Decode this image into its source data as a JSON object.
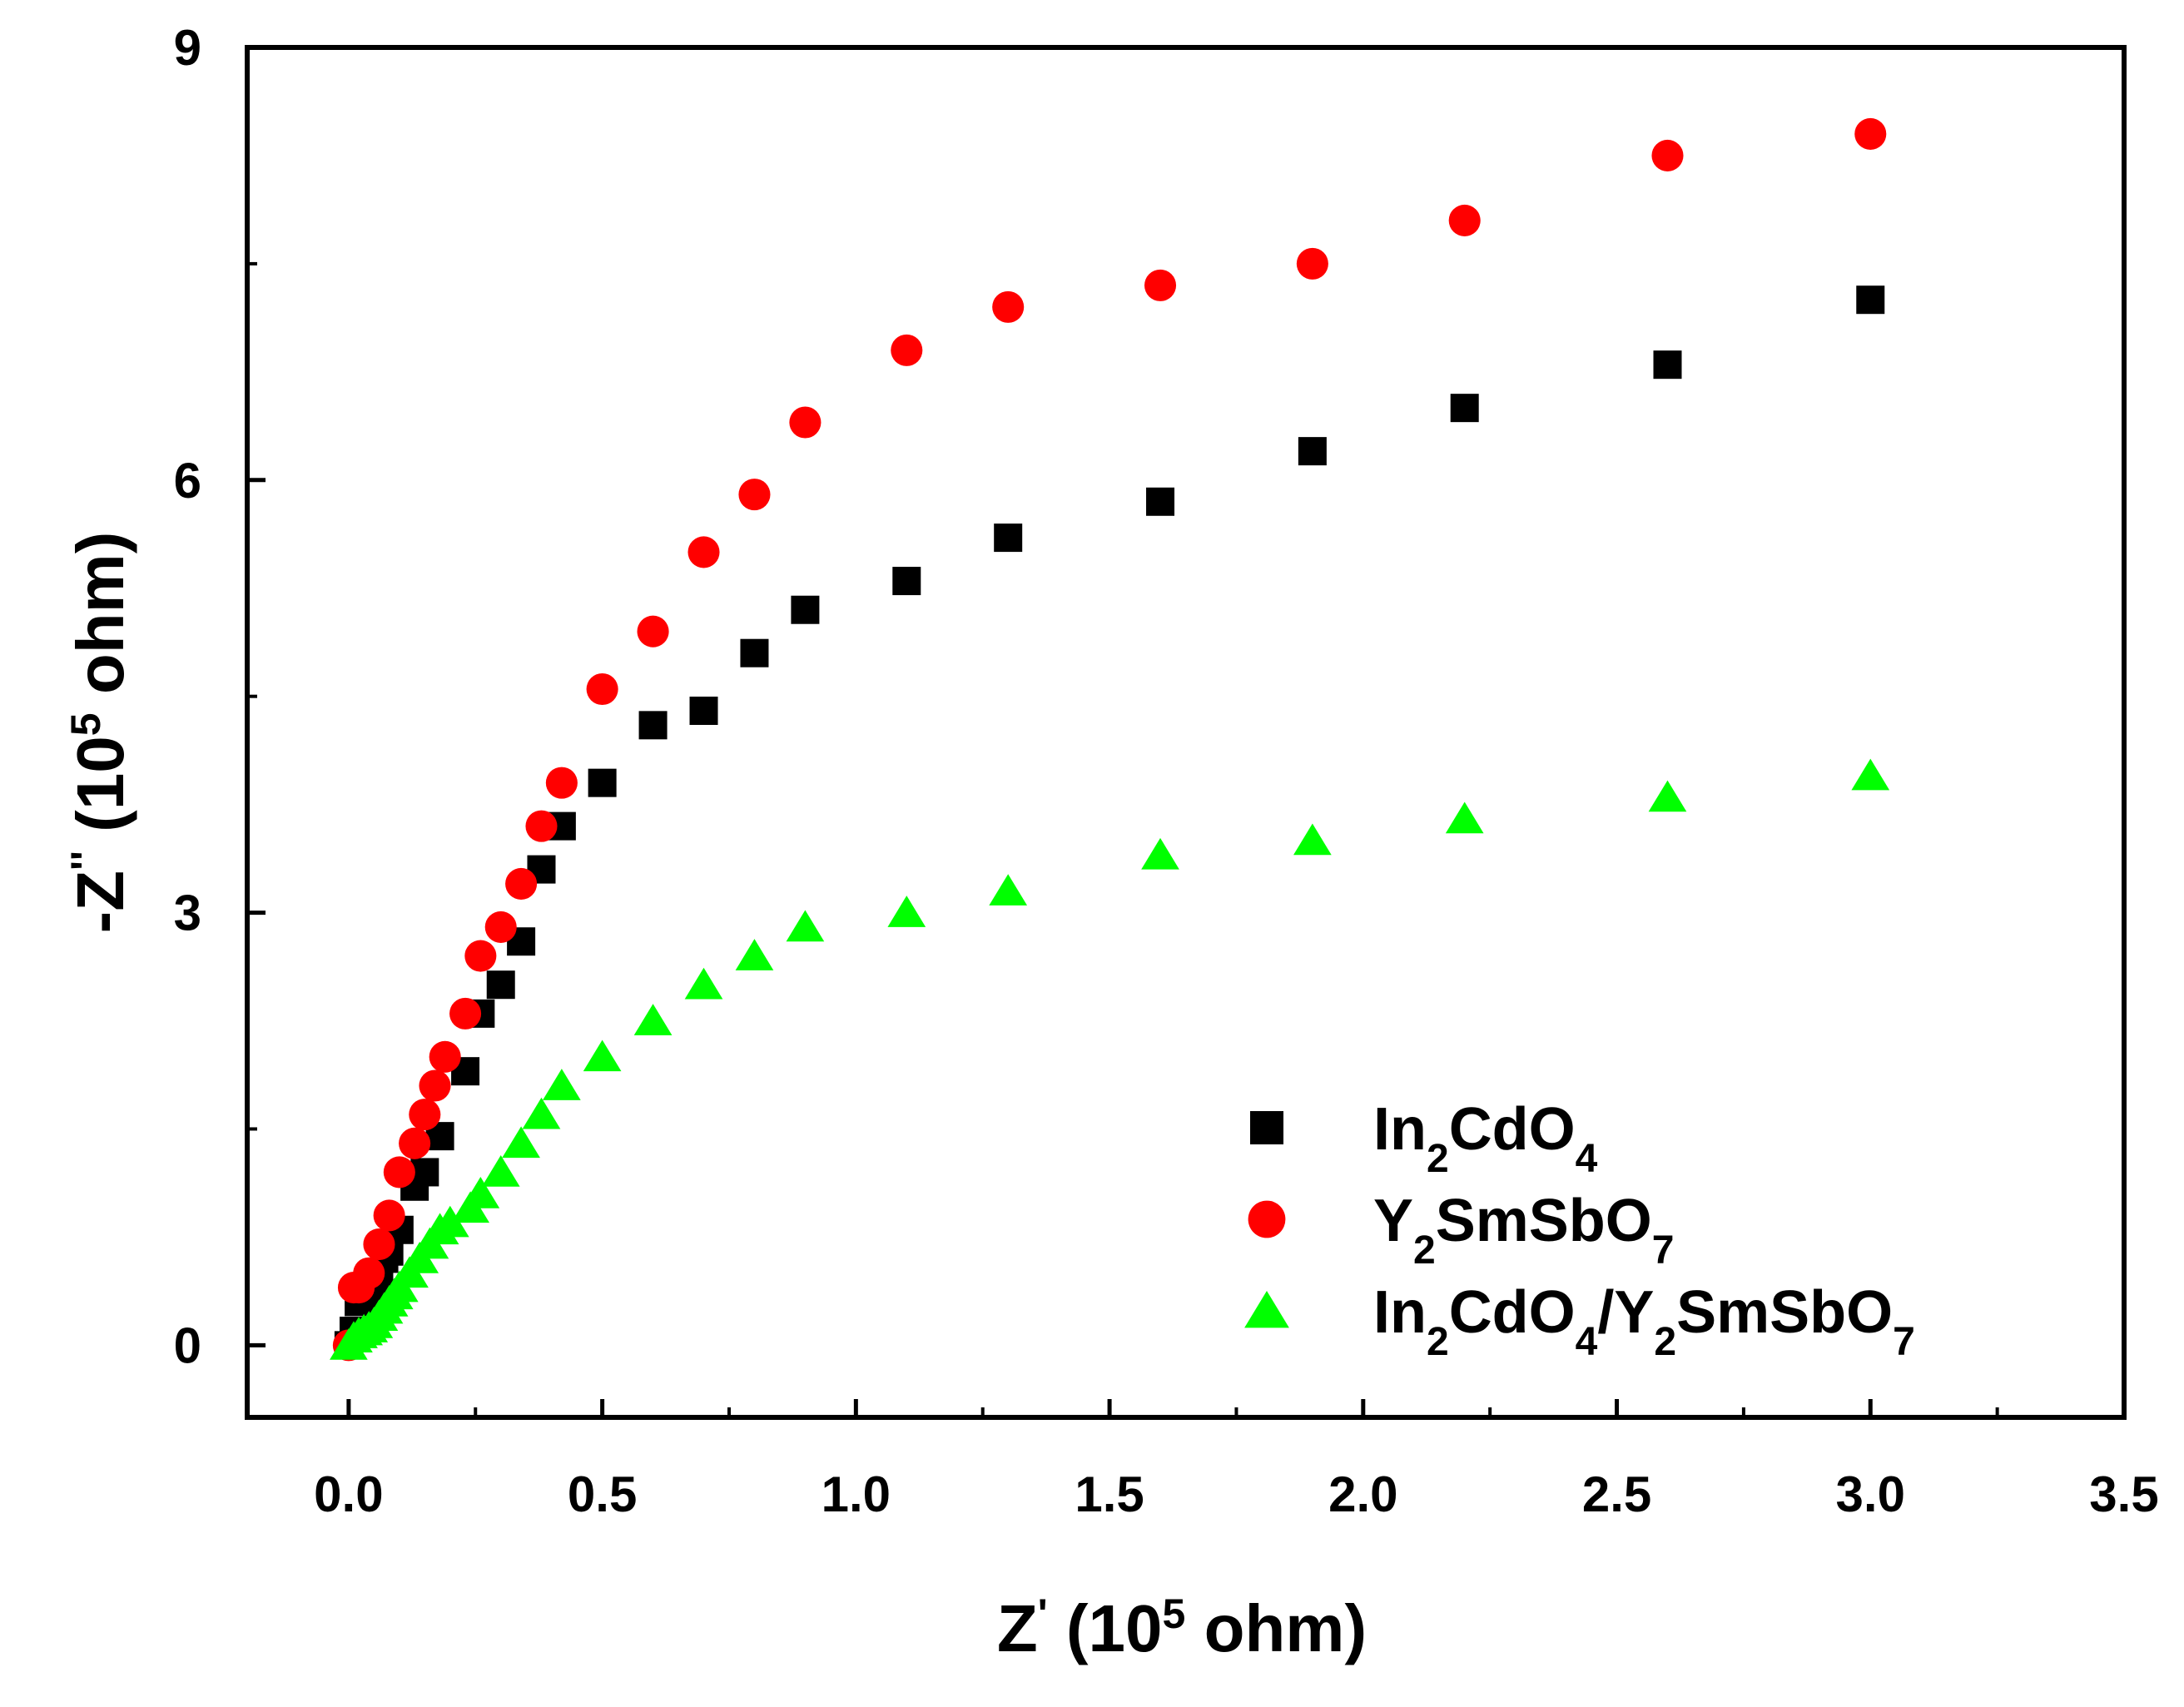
{
  "chart_data": {
    "type": "scatter",
    "title": "",
    "xlabel": {
      "base": "Z",
      "prime": "'",
      "unit_open": " (10",
      "exp": "5",
      "unit_close": " ohm)"
    },
    "ylabel": {
      "base": "-Z",
      "prime": "''",
      "unit_open": " (10",
      "exp": "5",
      "unit_close": " ohm)"
    },
    "xlim": [
      -0.2,
      3.5
    ],
    "ylim": [
      -0.5,
      9
    ],
    "x_ticks": [
      "0.0",
      "0.5",
      "1.0",
      "1.5",
      "2.0",
      "2.5",
      "3.0",
      "3.5"
    ],
    "x_tick_values": [
      0,
      0.5,
      1.0,
      1.5,
      2.0,
      2.5,
      3.0,
      3.5
    ],
    "y_ticks": [
      "0",
      "3",
      "6",
      "9"
    ],
    "y_tick_values": [
      0,
      3,
      6,
      9
    ],
    "legend_position": "bottom-right",
    "series": [
      {
        "name": "In2CdO4",
        "label_parts": [
          [
            "In",
            ""
          ],
          [
            "2",
            "sub"
          ],
          [
            "CdO",
            ""
          ],
          [
            "4",
            "sub"
          ]
        ],
        "marker": "square",
        "color": "#000000",
        "x": [
          0,
          0.01,
          0.02,
          0.03,
          0.04,
          0.05,
          0.06,
          0.07,
          0.08,
          0.1,
          0.13,
          0.15,
          0.18,
          0.23,
          0.26,
          0.3,
          0.34,
          0.38,
          0.42,
          0.5,
          0.6,
          0.7,
          0.8,
          0.9,
          1.1,
          1.3,
          1.6,
          1.9,
          2.2,
          2.6,
          3.0
        ],
        "y": [
          0,
          0.1,
          0.3,
          0.35,
          0.4,
          0.45,
          0.5,
          0.6,
          0.65,
          0.8,
          1.1,
          1.2,
          1.45,
          1.9,
          2.3,
          2.5,
          2.8,
          3.3,
          3.6,
          3.9,
          4.3,
          4.4,
          4.8,
          5.1,
          5.3,
          5.6,
          5.85,
          6.2,
          6.5,
          6.8,
          7.25
        ]
      },
      {
        "name": "Y2SmSbO7",
        "label_parts": [
          [
            "Y",
            ""
          ],
          [
            "2",
            "sub"
          ],
          [
            "SmSbO",
            ""
          ],
          [
            "7",
            "sub"
          ]
        ],
        "marker": "circle",
        "color": "#ff0000",
        "x": [
          0,
          0.01,
          0.02,
          0.04,
          0.06,
          0.08,
          0.1,
          0.13,
          0.15,
          0.17,
          0.19,
          0.23,
          0.26,
          0.3,
          0.34,
          0.38,
          0.42,
          0.5,
          0.6,
          0.7,
          0.8,
          0.9,
          1.1,
          1.3,
          1.6,
          1.9,
          2.2,
          2.6,
          3.0
        ],
        "y": [
          0,
          0.4,
          0.4,
          0.5,
          0.7,
          0.9,
          1.2,
          1.4,
          1.6,
          1.8,
          2.0,
          2.3,
          2.7,
          2.9,
          3.2,
          3.6,
          3.9,
          4.55,
          4.95,
          5.5,
          5.9,
          6.4,
          6.9,
          7.2,
          7.35,
          7.5,
          7.8,
          8.25,
          8.4
        ]
      },
      {
        "name": "In2CdO4/Y2SmSbO7",
        "label_parts": [
          [
            "In",
            ""
          ],
          [
            "2",
            "sub"
          ],
          [
            "CdO",
            ""
          ],
          [
            "4",
            "sub"
          ],
          [
            "/Y",
            ""
          ],
          [
            "2",
            "sub"
          ],
          [
            "SmSbO",
            ""
          ],
          [
            "7",
            "sub"
          ]
        ],
        "marker": "triangle",
        "color": "#00ff00",
        "x": [
          0,
          0.01,
          0.02,
          0.03,
          0.04,
          0.05,
          0.06,
          0.07,
          0.08,
          0.09,
          0.1,
          0.12,
          0.14,
          0.16,
          0.18,
          0.2,
          0.24,
          0.26,
          0.3,
          0.34,
          0.38,
          0.42,
          0.5,
          0.6,
          0.7,
          0.8,
          0.9,
          1.1,
          1.3,
          1.6,
          1.9,
          2.2,
          2.6,
          3.0
        ],
        "y": [
          0,
          0.05,
          0.08,
          0.1,
          0.12,
          0.15,
          0.2,
          0.25,
          0.3,
          0.35,
          0.4,
          0.5,
          0.6,
          0.7,
          0.8,
          0.85,
          0.95,
          1.05,
          1.2,
          1.4,
          1.6,
          1.8,
          2.0,
          2.25,
          2.5,
          2.7,
          2.9,
          3.0,
          3.15,
          3.4,
          3.5,
          3.65,
          3.8,
          3.95
        ]
      }
    ]
  }
}
